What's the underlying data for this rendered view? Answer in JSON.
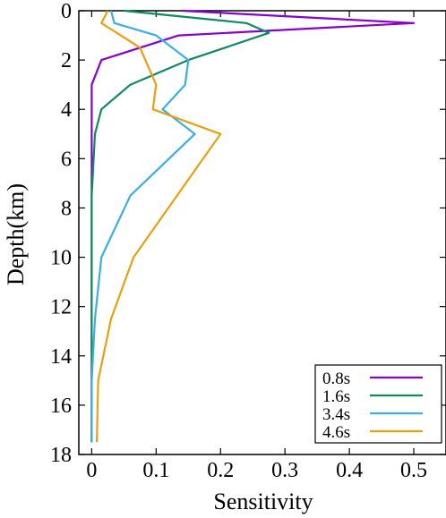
{
  "chart_data": {
    "type": "line",
    "xlabel": "Sensitivity",
    "ylabel": "Depth(km)",
    "xlim": [
      -0.02,
      0.55
    ],
    "ylim": [
      0,
      18
    ],
    "y_inverted": true,
    "x_ticks": [
      0,
      0.1,
      0.2,
      0.3,
      0.4,
      0.5
    ],
    "x_tick_labels": [
      "0",
      "0.1",
      "0.2",
      "0.3",
      "0.4",
      "0.5"
    ],
    "y_ticks": [
      0,
      2,
      4,
      6,
      8,
      10,
      12,
      14,
      16,
      18
    ],
    "y_tick_labels": [
      "0",
      "2",
      "4",
      "6",
      "8",
      "10",
      "12",
      "14",
      "16",
      "18"
    ],
    "legend_position": "bottom-right",
    "grid": false,
    "series": [
      {
        "name": "0.8s",
        "color": "#8800cc",
        "points": [
          [
            0.14,
            0
          ],
          [
            0.5,
            0.5
          ],
          [
            0.135,
            1
          ],
          [
            0.015,
            2
          ],
          [
            0.0,
            3
          ],
          [
            0.0,
            4
          ],
          [
            0.0,
            5
          ],
          [
            0.0,
            7.5
          ],
          [
            0.0,
            10
          ],
          [
            0.0,
            12.5
          ],
          [
            0.0,
            15
          ],
          [
            0.0,
            17.5
          ]
        ]
      },
      {
        "name": "1.6s",
        "color": "#0e8a5f",
        "points": [
          [
            0.05,
            0
          ],
          [
            0.24,
            0.5
          ],
          [
            0.275,
            0.9
          ],
          [
            0.15,
            2
          ],
          [
            0.06,
            3
          ],
          [
            0.015,
            4
          ],
          [
            0.005,
            5
          ],
          [
            0.0,
            7.5
          ],
          [
            0.0,
            10
          ],
          [
            0.0,
            12.5
          ],
          [
            0.0,
            15
          ],
          [
            0.0,
            17.5
          ]
        ]
      },
      {
        "name": "3.4s",
        "color": "#3aaee8",
        "points": [
          [
            0.03,
            0
          ],
          [
            0.035,
            0.5
          ],
          [
            0.1,
            1
          ],
          [
            0.15,
            2
          ],
          [
            0.145,
            3
          ],
          [
            0.11,
            4
          ],
          [
            0.16,
            5
          ],
          [
            0.06,
            7.5
          ],
          [
            0.015,
            10
          ],
          [
            0.005,
            12.5
          ],
          [
            0.0,
            15
          ],
          [
            0.0,
            17.5
          ]
        ]
      },
      {
        "name": "4.6s",
        "color": "#e8a010",
        "points": [
          [
            0.025,
            0
          ],
          [
            0.015,
            0.5
          ],
          [
            0.075,
            1.5
          ],
          [
            0.1,
            3
          ],
          [
            0.095,
            4
          ],
          [
            0.2,
            5
          ],
          [
            0.065,
            10
          ],
          [
            0.03,
            12.5
          ],
          [
            0.01,
            15
          ],
          [
            0.008,
            17.5
          ]
        ]
      }
    ]
  }
}
